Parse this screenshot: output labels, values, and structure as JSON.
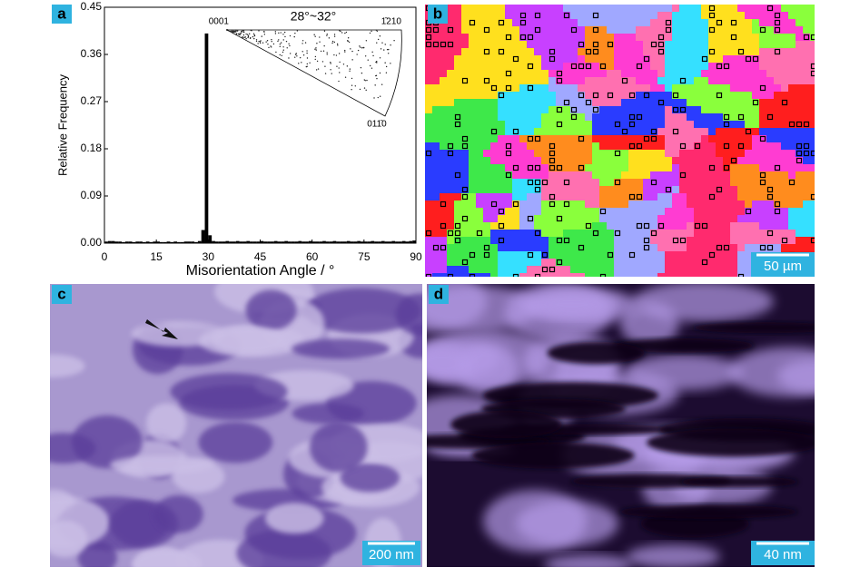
{
  "chart_data": {
    "type": "histogram",
    "y_label": "Relative Frequency",
    "x_label": "Misorientation Angle / °",
    "bins": [
      0,
      1,
      2,
      3,
      4,
      5,
      6,
      7,
      8,
      9,
      10,
      11,
      12,
      13,
      14,
      15,
      16,
      17,
      18,
      19,
      20,
      21,
      22,
      23,
      24,
      25,
      26,
      27,
      28,
      29,
      30,
      31,
      32,
      33,
      34,
      35,
      36,
      37,
      38,
      39,
      40,
      41,
      42,
      43,
      44,
      45,
      46,
      47,
      48,
      49,
      50,
      51,
      52,
      53,
      54,
      55,
      56,
      57,
      58,
      59,
      60,
      61,
      62,
      63,
      64,
      65,
      66,
      67,
      68,
      69,
      70,
      71,
      72,
      73,
      74,
      75,
      76,
      77,
      78,
      79,
      80,
      81,
      82,
      83,
      84,
      85,
      86,
      87,
      88,
      89,
      90
    ],
    "values": [
      0.003,
      0.004,
      0.004,
      0.003,
      0.003,
      0.002,
      0.003,
      0.003,
      0.002,
      0.003,
      0.003,
      0.002,
      0.003,
      0.002,
      0.003,
      0.003,
      0.002,
      0.002,
      0.003,
      0.002,
      0.003,
      0.002,
      0.002,
      0.003,
      0.003,
      0.003,
      0.002,
      0.004,
      0.025,
      0.4,
      0.015,
      0.004,
      0.003,
      0.003,
      0.003,
      0.004,
      0.003,
      0.003,
      0.004,
      0.003,
      0.003,
      0.004,
      0.003,
      0.003,
      0.003,
      0.004,
      0.003,
      0.003,
      0.003,
      0.004,
      0.003,
      0.003,
      0.004,
      0.003,
      0.003,
      0.003,
      0.004,
      0.003,
      0.003,
      0.004,
      0.003,
      0.003,
      0.003,
      0.004,
      0.003,
      0.003,
      0.004,
      0.003,
      0.003,
      0.003,
      0.004,
      0.003,
      0.003,
      0.004,
      0.003,
      0.003,
      0.003,
      0.004,
      0.003,
      0.003,
      0.004,
      0.003,
      0.003,
      0.004,
      0.003,
      0.003,
      0.004,
      0.003,
      0.004,
      0.005
    ],
    "color": "#000000",
    "xlim": [
      0,
      90
    ],
    "xticks": [
      0,
      15,
      30,
      45,
      60,
      75,
      90
    ],
    "ylim": [
      0,
      0.45
    ],
    "yticks": [
      {
        "value": 0,
        "label": "0.00"
      },
      0.09,
      0.18,
      0.27,
      0.36,
      0.45
    ],
    "annotations": [
      "0001",
      "28°~32°",
      "1̄210",
      "011̄0"
    ]
  },
  "panel_labels": [
    "a",
    "b",
    "c",
    "d"
  ],
  "scale_bars": [
    "50 µm",
    "200 nm",
    "40 nm"
  ]
}
